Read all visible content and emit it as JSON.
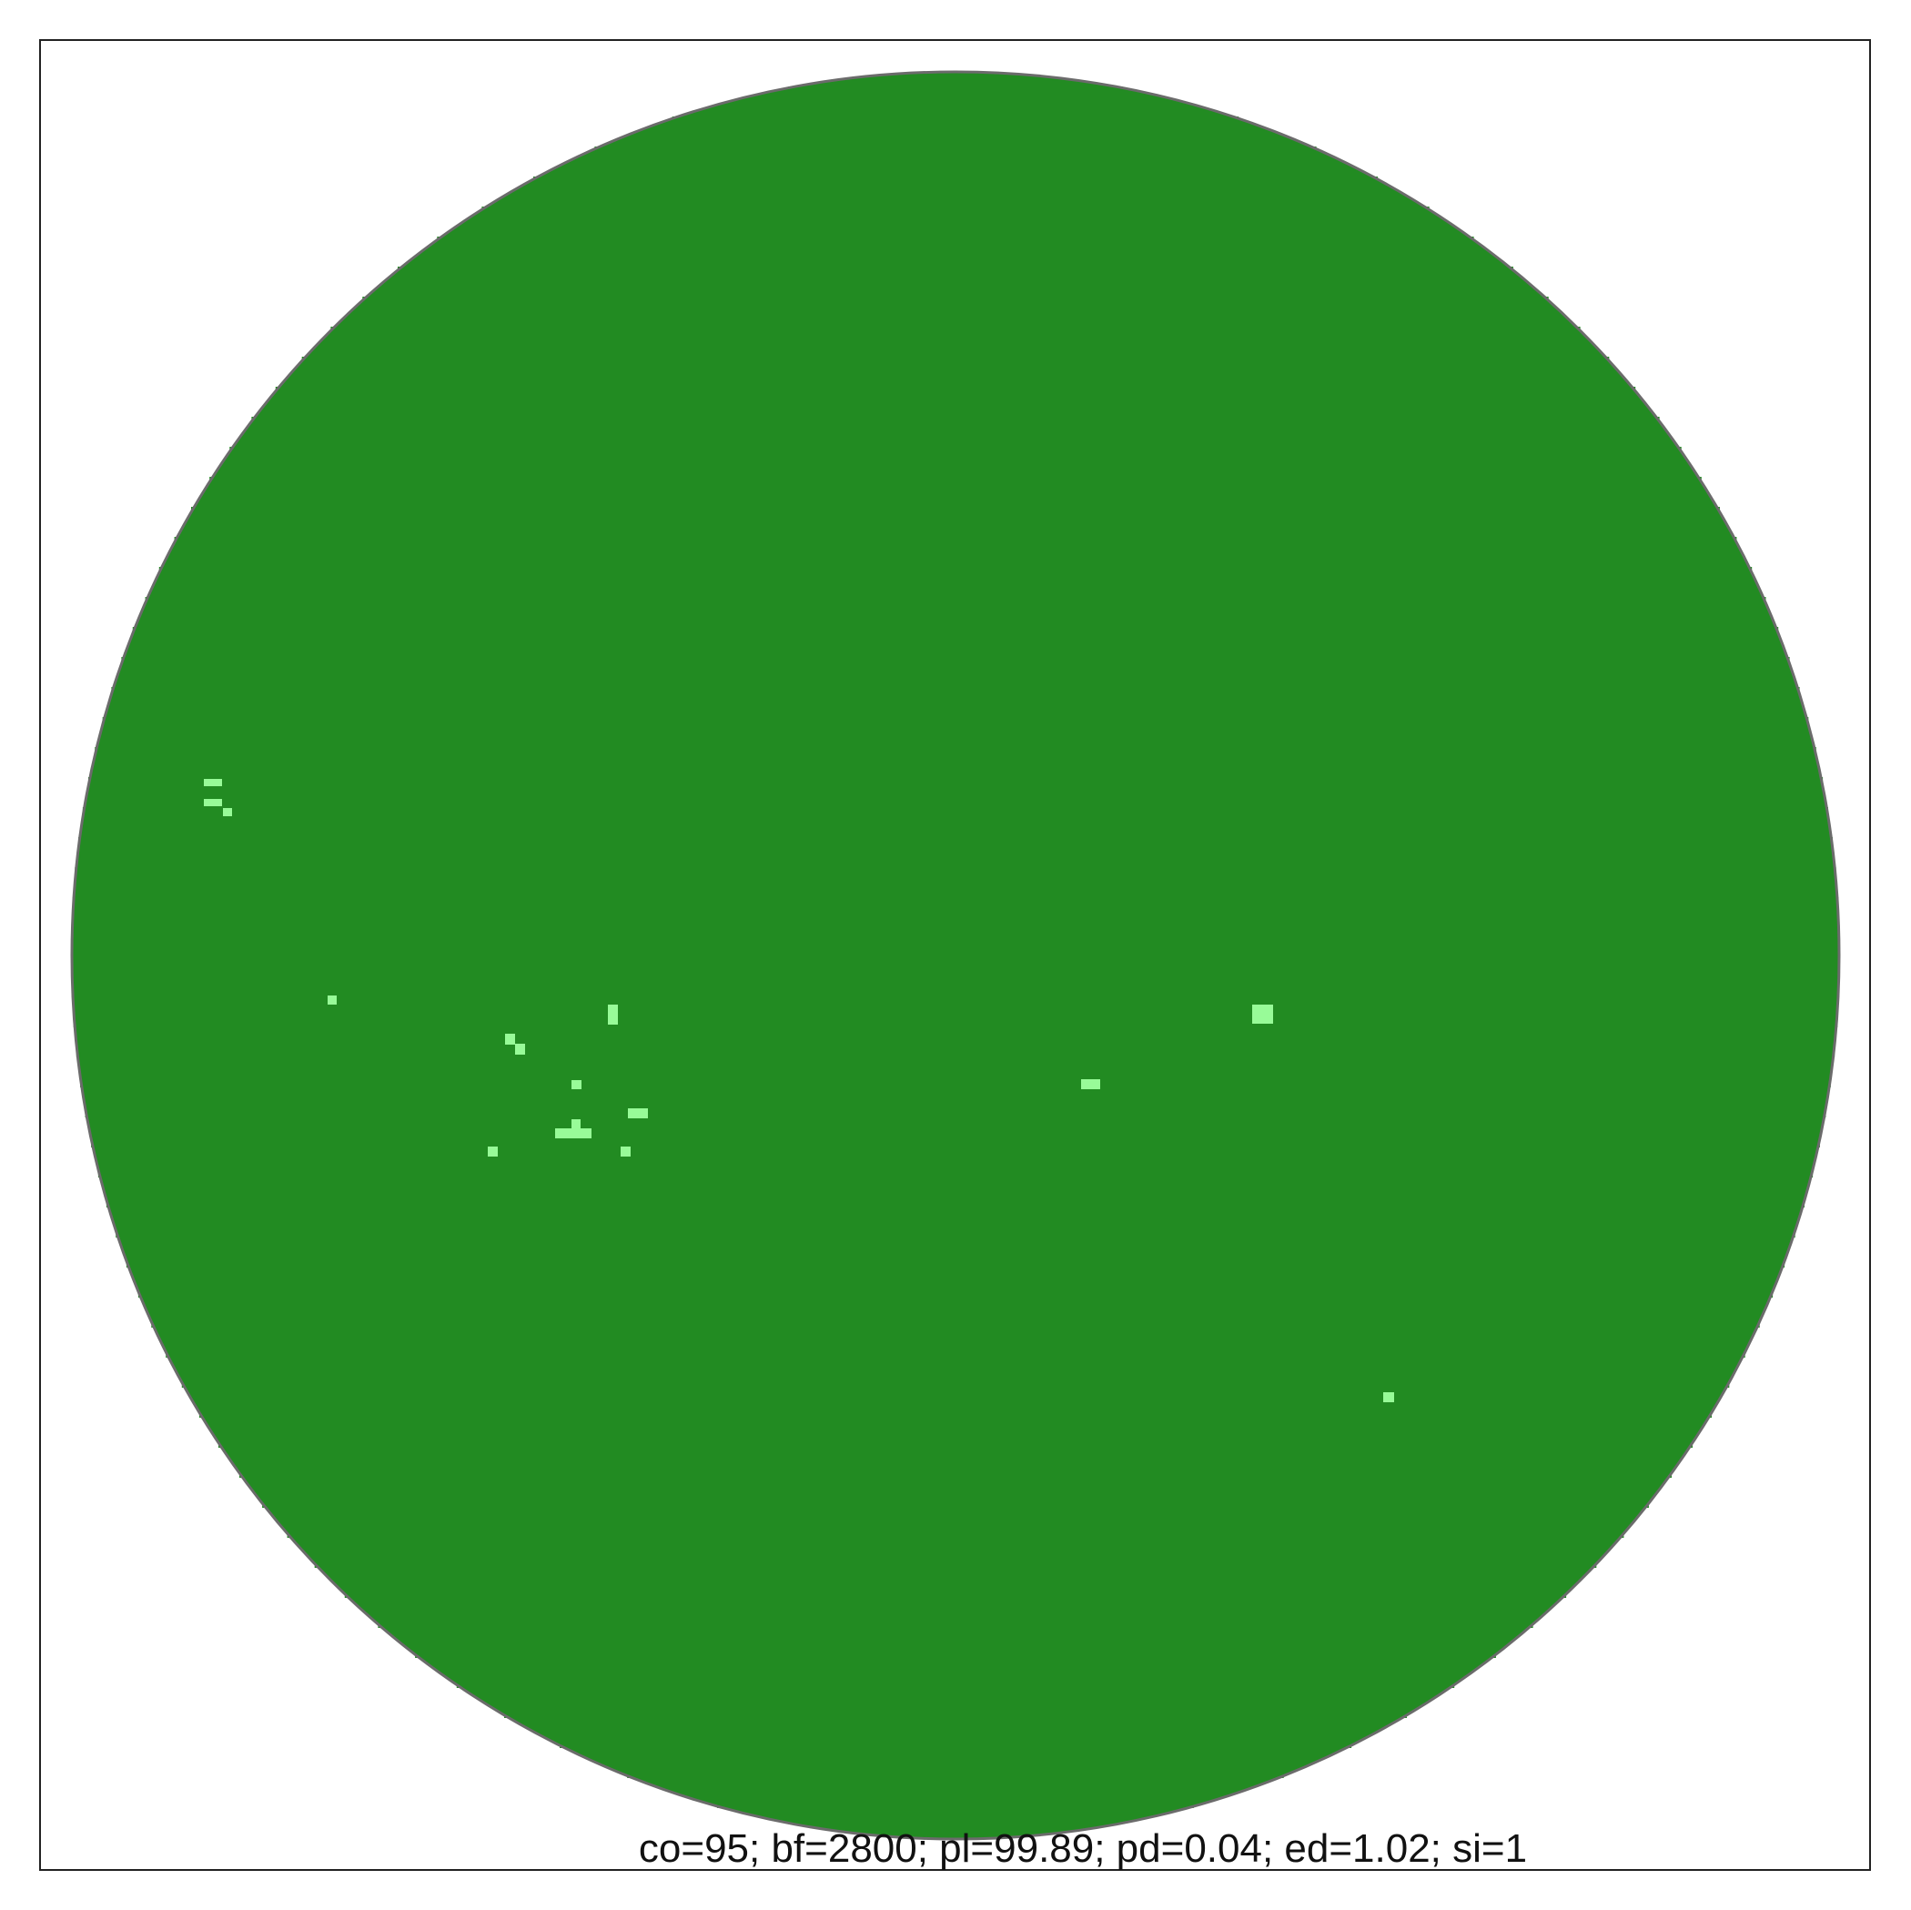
{
  "figure": {
    "caption": "co=95; bf=2800; pl=99.89; pd=0.04; ed=1.02; si=1"
  },
  "colors": {
    "background": "#ffffff",
    "frame": "#222222",
    "circle_outline": "#6b6b6b",
    "fill": "#228b22",
    "spots": "#98fb98"
  }
}
